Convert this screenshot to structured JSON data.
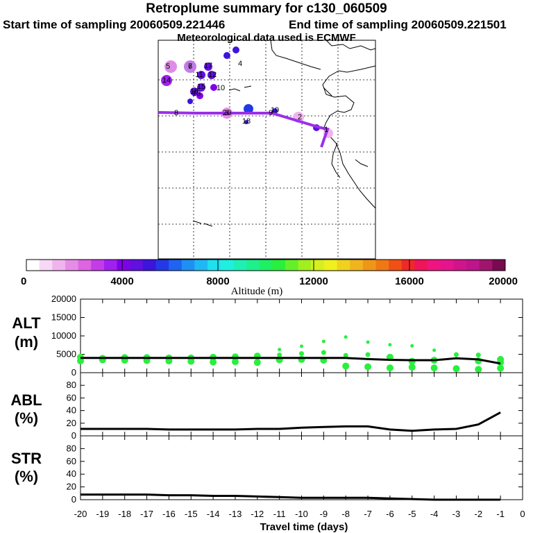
{
  "header": {
    "title": "Retroplume summary for c130_060509",
    "start": "Start time of sampling 20060509.221446",
    "end": "End time of sampling 20060509.221501",
    "met": "Meteorological data used is ECMWF"
  },
  "colorbar": {
    "label": "Altitude (m)",
    "tick_labels": [
      "0",
      "4000",
      "8000",
      "12000",
      "16000",
      "20000"
    ],
    "colors": [
      "#ffffff",
      "#f7d8f5",
      "#efb4ee",
      "#e68ce6",
      "#de64e0",
      "#c43ce8",
      "#a020f0",
      "#8000e8",
      "#6010e0",
      "#3c14dc",
      "#2438e8",
      "#1e64f0",
      "#1e90f4",
      "#1eb8f4",
      "#1ee0f0",
      "#1ef0e0",
      "#1ef0b4",
      "#1ef08c",
      "#1ef064",
      "#28f03c",
      "#64f028",
      "#a0f01e",
      "#d4f01e",
      "#f0f01e",
      "#f0d21e",
      "#f0b41e",
      "#f09616",
      "#f07814",
      "#f05014",
      "#f02828",
      "#f0145a",
      "#f01482",
      "#e6148c",
      "#d2148c",
      "#be148c",
      "#a0146e",
      "#780a50"
    ]
  },
  "map": {
    "track_labels": [
      "1",
      "2",
      "3",
      "4",
      "5",
      "6",
      "7",
      "8",
      "9",
      "10",
      "11",
      "12",
      "13",
      "14",
      "15",
      "16",
      "17",
      "18",
      "19",
      "20"
    ],
    "track_color": "#9b30e8",
    "grid_color": "#000000"
  },
  "panels": {
    "alt": {
      "label_line1": "ALT",
      "label_line2": "(m)",
      "yticks": [
        "20000",
        "15000",
        "10000",
        "5000",
        "0"
      ]
    },
    "abl": {
      "label_line1": "ABL",
      "label_line2": "(%)",
      "yticks": [
        "80",
        "60",
        "40",
        "20",
        "0"
      ]
    },
    "str": {
      "label_line1": "STR",
      "label_line2": "(%)",
      "yticks": [
        "80",
        "60",
        "40",
        "20",
        "0"
      ]
    }
  },
  "chart_data": {
    "type": "line",
    "title": "Retroplume summary for c130_060509",
    "xlabel": "Travel time (days)",
    "x": [
      -20,
      -19,
      -18,
      -17,
      -16,
      -15,
      -14,
      -13,
      -12,
      -11,
      -10,
      -9,
      -8,
      -7,
      -6,
      -5,
      -4,
      -3,
      -2,
      -1
    ],
    "x_tick_labels": [
      "-20",
      "-19",
      "-18",
      "-17",
      "-16",
      "-15",
      "-14",
      "-13",
      "-12",
      "-11",
      "-10",
      "-9",
      "-8",
      "-7",
      "-6",
      "-5",
      "-4",
      "-3",
      "-2",
      "-1",
      "0"
    ],
    "xlim": [
      -20,
      0
    ],
    "series": [
      {
        "name": "ALT (m)",
        "ylim": [
          0,
          20000
        ],
        "values": [
          4000,
          4000,
          4000,
          4000,
          4000,
          4000,
          4000,
          4000,
          4000,
          4000,
          4000,
          4000,
          4000,
          3700,
          3500,
          3400,
          3400,
          3900,
          3600,
          2500
        ]
      },
      {
        "name": "ABL (%)",
        "ylim": [
          0,
          100
        ],
        "values": [
          11,
          11,
          11,
          11,
          10,
          10,
          10,
          10,
          11,
          11,
          13,
          14,
          15,
          15,
          10,
          8,
          10,
          11,
          18,
          37
        ]
      },
      {
        "name": "STR (%)",
        "ylim": [
          0,
          100
        ],
        "values": [
          8,
          8,
          8,
          8,
          7,
          7,
          6,
          6,
          5,
          4,
          3,
          3,
          3,
          3,
          2,
          1,
          0,
          0,
          0,
          0
        ]
      }
    ],
    "alt_scatter": [
      [
        -20,
        3200
      ],
      [
        -20,
        4200
      ],
      [
        -19,
        3500
      ],
      [
        -19,
        3900
      ],
      [
        -18,
        3400
      ],
      [
        -18,
        4100
      ],
      [
        -17,
        3300
      ],
      [
        -17,
        4100
      ],
      [
        -16,
        3200
      ],
      [
        -16,
        4000
      ],
      [
        -15,
        3100
      ],
      [
        -15,
        4000
      ],
      [
        -14,
        2900
      ],
      [
        -14,
        4200
      ],
      [
        -13,
        3000
      ],
      [
        -13,
        4300
      ],
      [
        -12,
        2800
      ],
      [
        -12,
        4500
      ],
      [
        -11,
        3500
      ],
      [
        -11,
        4800
      ],
      [
        -11,
        6300
      ],
      [
        -10,
        3600
      ],
      [
        -10,
        5200
      ],
      [
        -10,
        7200
      ],
      [
        -9,
        3400
      ],
      [
        -9,
        5500
      ],
      [
        -9,
        8500
      ],
      [
        -8,
        1800
      ],
      [
        -8,
        4700
      ],
      [
        -8,
        9700
      ],
      [
        -7,
        1600
      ],
      [
        -7,
        4900
      ],
      [
        -7,
        8300
      ],
      [
        -6,
        1300
      ],
      [
        -6,
        4200
      ],
      [
        -6,
        7600
      ],
      [
        -5,
        1500
      ],
      [
        -5,
        3100
      ],
      [
        -5,
        7300
      ],
      [
        -4,
        1300
      ],
      [
        -4,
        3400
      ],
      [
        -4,
        6100
      ],
      [
        -3,
        1100
      ],
      [
        -3,
        4900
      ],
      [
        -2,
        900
      ],
      [
        -2,
        3200
      ],
      [
        -2,
        4800
      ],
      [
        -1,
        1200
      ],
      [
        -1,
        2800
      ],
      [
        -1,
        3600
      ]
    ]
  },
  "xaxis": {
    "title": "Travel time (days)"
  }
}
